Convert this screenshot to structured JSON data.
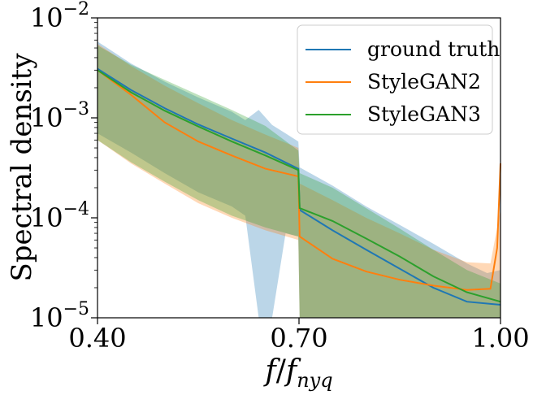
{
  "chart_data": {
    "type": "line",
    "xlabel": "f/f_nyq",
    "ylabel": "Spectral density",
    "xlim": [
      0.4,
      1.0
    ],
    "ylim": [
      1e-05,
      0.01
    ],
    "yscale": "log",
    "grid": false,
    "legend_position": "top-right",
    "x_ticks": [
      {
        "value": 0.4,
        "label": "0.40"
      },
      {
        "value": 0.7,
        "label": "0.70"
      },
      {
        "value": 1.0,
        "label": "1.00"
      }
    ],
    "y_ticks": [
      {
        "value": 1e-05,
        "base": "10",
        "exp": "−5"
      },
      {
        "value": 0.0001,
        "base": "10",
        "exp": "−4"
      },
      {
        "value": 0.001,
        "base": "10",
        "exp": "−3"
      },
      {
        "value": 0.01,
        "base": "10",
        "exp": "−2"
      }
    ],
    "series": [
      {
        "name": "ground truth",
        "color": "#1f77b4",
        "line": {
          "x": [
            0.4,
            0.45,
            0.5,
            0.55,
            0.6,
            0.65,
            0.699,
            0.701,
            0.75,
            0.8,
            0.85,
            0.9,
            0.95,
            1.0
          ],
          "y": [
            0.0031,
            0.0019,
            0.00125,
            0.00086,
            0.00062,
            0.00045,
            0.00031,
            0.00012,
            7.5e-05,
            4.8e-05,
            3.1e-05,
            2e-05,
            1.45e-05,
            1.35e-05
          ]
        },
        "band": {
          "x": [
            0.4,
            0.45,
            0.5,
            0.55,
            0.6,
            0.62,
            0.64,
            0.66,
            0.68,
            0.699,
            0.701,
            0.75,
            0.8,
            0.85,
            0.9,
            0.95,
            0.98,
            1.0
          ],
          "upper": [
            0.0058,
            0.0035,
            0.0023,
            0.0016,
            0.00115,
            0.00095,
            0.0012,
            0.00085,
            0.0007,
            0.00058,
            0.00032,
            0.00021,
            0.00013,
            8.5e-05,
            5.5e-05,
            3.5e-05,
            2.8e-05,
            3e-05
          ],
          "lower": [
            0.0007,
            0.00045,
            0.00028,
            0.00018,
            0.00013,
            0.000105,
            1e-05,
            1e-05,
            7e-05,
            6.5e-05,
            1e-05,
            1e-05,
            1e-05,
            1e-05,
            1e-05,
            1e-05,
            1e-05,
            1e-05
          ]
        }
      },
      {
        "name": "StyleGAN2",
        "color": "#ff7f0e",
        "line": {
          "x": [
            0.4,
            0.45,
            0.5,
            0.55,
            0.6,
            0.65,
            0.699,
            0.701,
            0.75,
            0.8,
            0.85,
            0.9,
            0.95,
            0.985,
            0.995,
            1.0
          ],
          "y": [
            0.003,
            0.0017,
            0.0009,
            0.00058,
            0.00042,
            0.00031,
            0.00026,
            6.5e-05,
            3.9e-05,
            2.9e-05,
            2.4e-05,
            2.1e-05,
            1.9e-05,
            1.95e-05,
            5e-05,
            0.00035
          ]
        },
        "band": {
          "x": [
            0.4,
            0.45,
            0.5,
            0.55,
            0.6,
            0.65,
            0.699,
            0.701,
            0.75,
            0.8,
            0.85,
            0.9,
            0.95,
            0.985,
            1.0
          ],
          "upper": [
            0.0055,
            0.0033,
            0.0021,
            0.0014,
            0.00095,
            0.00068,
            0.0005,
            0.00022,
            0.00015,
            0.0001,
            7e-05,
            4.8e-05,
            3.6e-05,
            3.5e-05,
            0.00012
          ],
          "lower": [
            0.0006,
            0.00035,
            0.00022,
            0.00014,
            0.0001,
            7.5e-05,
            6e-05,
            1e-05,
            1e-05,
            1e-05,
            1e-05,
            1e-05,
            1e-05,
            1e-05,
            1e-05
          ]
        }
      },
      {
        "name": "StyleGAN3",
        "color": "#2ca02c",
        "line": {
          "x": [
            0.4,
            0.45,
            0.5,
            0.55,
            0.6,
            0.65,
            0.699,
            0.701,
            0.75,
            0.8,
            0.85,
            0.9,
            0.95,
            1.0
          ],
          "y": [
            0.003,
            0.0018,
            0.00118,
            0.00082,
            0.00058,
            0.00042,
            0.0003,
            0.000125,
            9.3e-05,
            6.2e-05,
            4.1e-05,
            2.6e-05,
            1.8e-05,
            1.45e-05
          ]
        },
        "band": {
          "x": [
            0.4,
            0.45,
            0.5,
            0.55,
            0.6,
            0.65,
            0.699,
            0.701,
            0.75,
            0.8,
            0.85,
            0.9,
            0.95,
            1.0
          ],
          "upper": [
            0.0053,
            0.0034,
            0.0024,
            0.0017,
            0.0012,
            0.00083,
            0.00047,
            0.00028,
            0.0002,
            0.000125,
            7.8e-05,
            4.8e-05,
            3e-05,
            2.2e-05
          ],
          "lower": [
            0.0006,
            0.00036,
            0.00023,
            0.00015,
            0.000105,
            8e-05,
            6.5e-05,
            1e-05,
            1e-05,
            1e-05,
            1e-05,
            1e-05,
            1e-05,
            1e-05
          ]
        }
      }
    ]
  }
}
